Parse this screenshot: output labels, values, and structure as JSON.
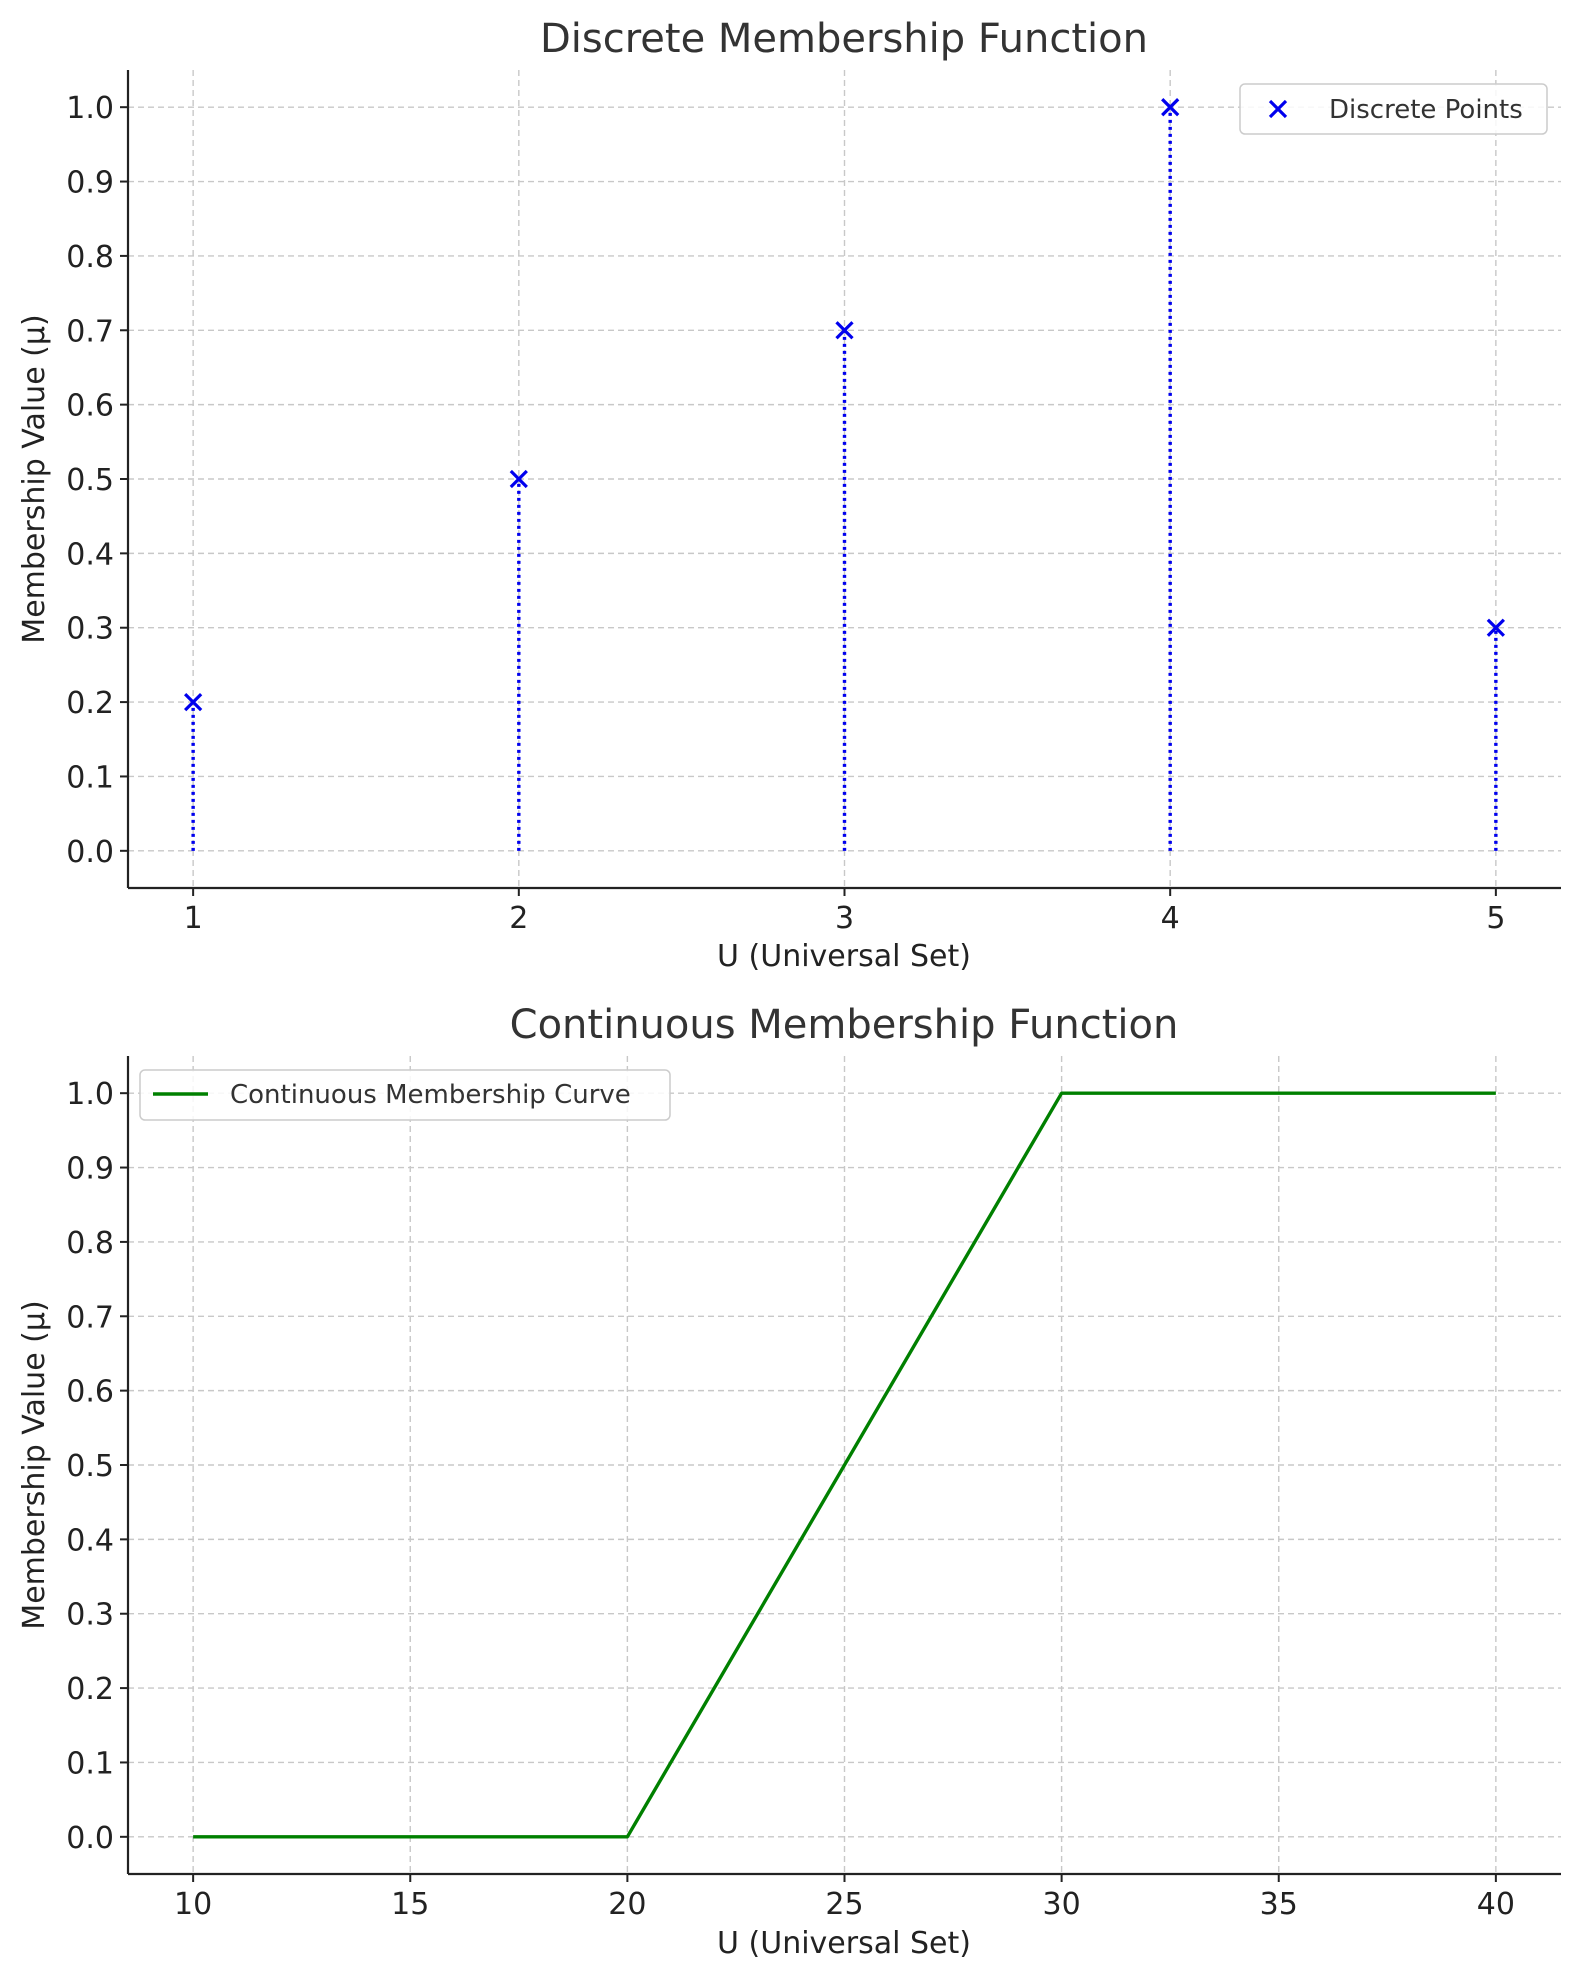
{
  "chart_data": [
    {
      "type": "scatter",
      "title": "Discrete Membership Function",
      "xlabel": "U (Universal Set)",
      "ylabel": "Membership Value (μ)",
      "xlim": [
        0.8,
        5.2
      ],
      "ylim": [
        -0.05,
        1.05
      ],
      "x_ticks": [
        1,
        2,
        3,
        4,
        5
      ],
      "y_ticks": [
        0.0,
        0.1,
        0.2,
        0.3,
        0.4,
        0.5,
        0.6,
        0.7,
        0.8,
        0.9,
        1.0
      ],
      "x_tick_labels": [
        "1",
        "2",
        "3",
        "4",
        "5"
      ],
      "y_tick_labels": [
        "0.0",
        "0.1",
        "0.2",
        "0.3",
        "0.4",
        "0.5",
        "0.6",
        "0.7",
        "0.8",
        "0.9",
        "1.0"
      ],
      "grid": true,
      "legend_position": "top-right",
      "series": [
        {
          "name": "Discrete Points",
          "marker": "x",
          "stems": "dotted",
          "color": "#0000ee",
          "x": [
            1,
            2,
            3,
            4,
            5
          ],
          "y": [
            0.2,
            0.5,
            0.7,
            1.0,
            0.3
          ]
        }
      ]
    },
    {
      "type": "line",
      "title": "Continuous Membership Function",
      "xlabel": "U (Universal Set)",
      "ylabel": "Membership Value (μ)",
      "xlim": [
        8.5,
        41.5
      ],
      "ylim": [
        -0.05,
        1.05
      ],
      "x_ticks": [
        10,
        15,
        20,
        25,
        30,
        35,
        40
      ],
      "y_ticks": [
        0.0,
        0.1,
        0.2,
        0.3,
        0.4,
        0.5,
        0.6,
        0.7,
        0.8,
        0.9,
        1.0
      ],
      "x_tick_labels": [
        "10",
        "15",
        "20",
        "25",
        "30",
        "35",
        "40"
      ],
      "y_tick_labels": [
        "0.0",
        "0.1",
        "0.2",
        "0.3",
        "0.4",
        "0.5",
        "0.6",
        "0.7",
        "0.8",
        "0.9",
        "1.0"
      ],
      "grid": true,
      "legend_position": "top-left",
      "series": [
        {
          "name": "Continuous Membership Curve",
          "color": "#008000",
          "x": [
            10,
            20,
            30,
            40
          ],
          "y": [
            0.0,
            0.0,
            1.0,
            1.0
          ]
        }
      ]
    }
  ]
}
